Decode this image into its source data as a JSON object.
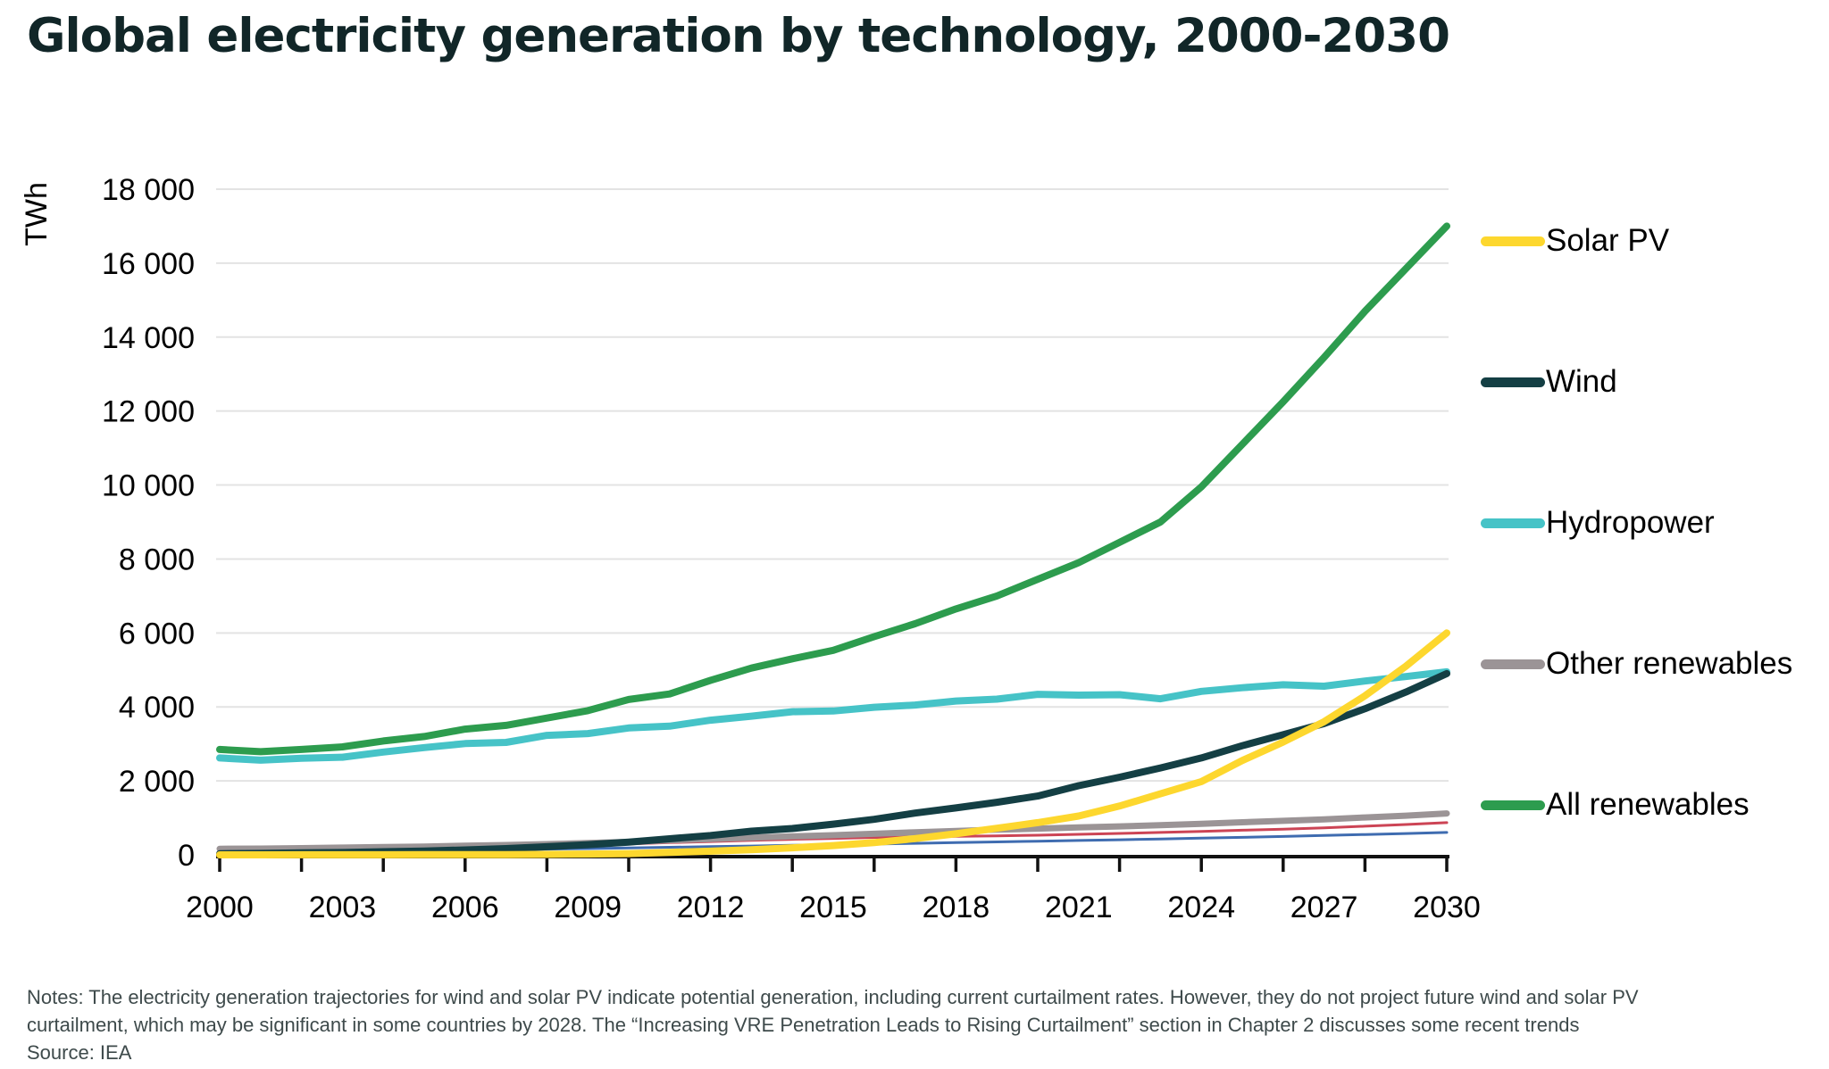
{
  "title": "Global electricity generation by technology, 2000-2030",
  "y_axis": {
    "title": "TWh",
    "tick_values": [
      0,
      2000,
      4000,
      6000,
      8000,
      10000,
      12000,
      14000,
      16000,
      18000
    ],
    "tick_labels": [
      "0",
      "2 000",
      "4 000",
      "6 000",
      "8 000",
      "10 000",
      "12 000",
      "14 000",
      "16 000",
      "18 000"
    ]
  },
  "x_axis": {
    "start_year": 2000,
    "end_year": 2030,
    "minor_tick_step": 2,
    "label_years": [
      2000,
      2003,
      2006,
      2009,
      2012,
      2015,
      2018,
      2021,
      2024,
      2027,
      2030
    ]
  },
  "legend": [
    {
      "label": "Solar PV",
      "color": "#fdd72e"
    },
    {
      "label": "Wind",
      "color": "#143f44"
    },
    {
      "label": "Hydropower",
      "color": "#46c3c7"
    },
    {
      "label": "Other renewables",
      "color": "#9b9496"
    },
    {
      "label": "All renewables",
      "color": "#2d9c4e"
    }
  ],
  "notes": {
    "line1": "Notes: The electricity generation trajectories for wind and solar PV indicate potential generation, including current curtailment rates. However, they do not project future wind and solar PV",
    "line2": "curtailment, which may be significant in some countries by 2028. The “Increasing VRE Penetration Leads to Rising Curtailment” section in Chapter 2 discusses some recent trends",
    "source": "Source: IEA"
  },
  "chart_data": {
    "type": "line",
    "title": "Global electricity generation by technology, 2000-2030",
    "xlabel": "",
    "ylabel": "TWh",
    "xlim": [
      2000,
      2030
    ],
    "ylim": [
      0,
      18000
    ],
    "grid": true,
    "legend_position": "right",
    "x": [
      2000,
      2001,
      2002,
      2003,
      2004,
      2005,
      2006,
      2007,
      2008,
      2009,
      2010,
      2011,
      2012,
      2013,
      2014,
      2015,
      2016,
      2017,
      2018,
      2019,
      2020,
      2021,
      2022,
      2023,
      2024,
      2025,
      2026,
      2027,
      2028,
      2029,
      2030
    ],
    "series": [
      {
        "name": "unlabeled thin line (red, partly hidden under Other renewables)",
        "in_legend": false,
        "color": "#cc4455",
        "width": 3,
        "values": [
          140,
          148,
          155,
          165,
          178,
          190,
          205,
          222,
          240,
          265,
          295,
          330,
          360,
          390,
          420,
          445,
          470,
          485,
          500,
          515,
          530,
          555,
          580,
          605,
          635,
          665,
          695,
          730,
          775,
          820,
          870
        ]
      },
      {
        "name": "unlabeled thin line (blue, partly hidden under Other renewables)",
        "in_legend": false,
        "color": "#3f6cb0",
        "width": 3,
        "values": [
          90,
          94,
          99,
          105,
          113,
          121,
          131,
          142,
          155,
          170,
          187,
          205,
          222,
          240,
          258,
          275,
          293,
          312,
          330,
          349,
          368,
          388,
          408,
          429,
          451,
          474,
          498,
          523,
          549,
          576,
          605
        ]
      },
      {
        "name": "Other renewables",
        "in_legend": true,
        "color": "#9b9496",
        "width": 7,
        "values": [
          165,
          170,
          180,
          195,
          210,
          225,
          245,
          265,
          290,
          320,
          350,
          390,
          430,
          465,
          500,
          530,
          570,
          610,
          645,
          680,
          710,
          740,
          770,
          800,
          840,
          880,
          920,
          960,
          1010,
          1060,
          1120
        ]
      },
      {
        "name": "All renewables",
        "in_legend": true,
        "color": "#2d9c4e",
        "width": 8,
        "values": [
          2850,
          2790,
          2850,
          2920,
          3080,
          3200,
          3400,
          3500,
          3700,
          3900,
          4200,
          4350,
          4720,
          5050,
          5300,
          5530,
          5900,
          6250,
          6650,
          7000,
          7450,
          7900,
          8450,
          9000,
          9950,
          11100,
          12250,
          13450,
          14700,
          15850,
          17000
        ]
      },
      {
        "name": "Hydropower",
        "in_legend": true,
        "color": "#46c3c7",
        "width": 8,
        "values": [
          2620,
          2560,
          2610,
          2640,
          2780,
          2900,
          3010,
          3040,
          3230,
          3280,
          3430,
          3480,
          3640,
          3750,
          3870,
          3890,
          3990,
          4050,
          4160,
          4210,
          4340,
          4320,
          4330,
          4220,
          4420,
          4520,
          4600,
          4560,
          4700,
          4820,
          4950
        ]
      },
      {
        "name": "Wind",
        "in_legend": true,
        "color": "#143f44",
        "width": 8,
        "values": [
          31,
          38,
          52,
          63,
          85,
          104,
          133,
          170,
          220,
          275,
          342,
          435,
          523,
          640,
          712,
          830,
          960,
          1130,
          1270,
          1420,
          1590,
          1870,
          2100,
          2350,
          2620,
          2950,
          3250,
          3550,
          3950,
          4400,
          4900
        ]
      },
      {
        "name": "Solar PV",
        "in_legend": true,
        "color": "#fdd72e",
        "width": 8,
        "values": [
          1,
          1,
          2,
          2,
          3,
          4,
          6,
          8,
          12,
          21,
          34,
          65,
          100,
          140,
          190,
          250,
          330,
          440,
          570,
          720,
          870,
          1050,
          1320,
          1650,
          1980,
          2550,
          3050,
          3600,
          4300,
          5100,
          6000
        ]
      }
    ]
  },
  "style": {
    "grid_color": "#e3e3e3",
    "axis_color": "#111111",
    "label_color": "#000000",
    "title_color": "#112628",
    "notes_color": "#3e4a4b"
  }
}
